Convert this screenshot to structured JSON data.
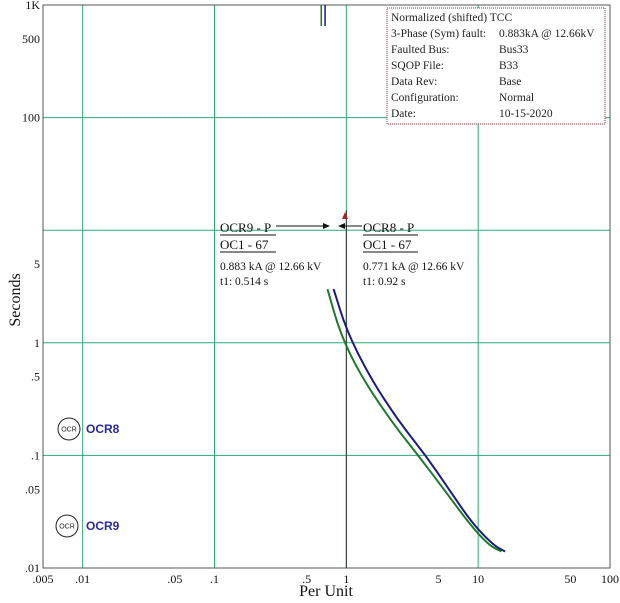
{
  "chart_data": {
    "type": "line",
    "title": "",
    "xlabel": "Per Unit",
    "ylabel": "Seconds",
    "x_scale": "log",
    "y_scale": "log",
    "xlim": [
      0.005,
      100
    ],
    "ylim": [
      0.01,
      1000
    ],
    "grid": true,
    "x_ticks": [
      {
        "value": 0.005,
        "label": ".005"
      },
      {
        "value": 0.01,
        "label": ".01"
      },
      {
        "value": 0.05,
        "label": ".05"
      },
      {
        "value": 0.1,
        "label": ".1"
      },
      {
        "value": 0.5,
        "label": ".5"
      },
      {
        "value": 1,
        "label": "1"
      },
      {
        "value": 5,
        "label": "5"
      },
      {
        "value": 10,
        "label": "10"
      },
      {
        "value": 50,
        "label": "50"
      },
      {
        "value": 100,
        "label": "100"
      }
    ],
    "y_ticks": [
      {
        "value": 0.01,
        "label": ".01"
      },
      {
        "value": 0.05,
        "label": ".05"
      },
      {
        "value": 0.1,
        "label": ".1"
      },
      {
        "value": 0.5,
        "label": ".5"
      },
      {
        "value": 1,
        "label": "1"
      },
      {
        "value": 5,
        "label": "5"
      },
      {
        "value": 100,
        "label": "100"
      },
      {
        "value": 500,
        "label": "500"
      },
      {
        "value": 1000,
        "label": "1K"
      }
    ],
    "x_grid": [
      0.01,
      0.1,
      1,
      10,
      100
    ],
    "y_grid": [
      0.01,
      0.1,
      1,
      10,
      100,
      1000
    ],
    "reference_line_x": 1,
    "series": [
      {
        "name": "OCR8",
        "color": "#1a1a8c",
        "points": [
          [
            0.8,
            3.0
          ],
          [
            1.0,
            1.3
          ],
          [
            1.5,
            0.5
          ],
          [
            2.5,
            0.2
          ],
          [
            4.0,
            0.1
          ],
          [
            6.0,
            0.05
          ],
          [
            9.0,
            0.025
          ],
          [
            13.0,
            0.016
          ],
          [
            16.0,
            0.014
          ]
        ],
        "top_segment": {
          "x": 0.69,
          "y_from": 1000,
          "y_to": 650
        }
      },
      {
        "name": "OCR9",
        "color": "#1e7a2a",
        "points": [
          [
            0.72,
            3.0
          ],
          [
            0.9,
            1.2
          ],
          [
            1.3,
            0.5
          ],
          [
            2.2,
            0.2
          ],
          [
            3.5,
            0.1
          ],
          [
            5.5,
            0.05
          ],
          [
            8.5,
            0.025
          ],
          [
            12.0,
            0.016
          ],
          [
            15.0,
            0.014
          ]
        ],
        "top_segment": {
          "x": 0.645,
          "y_from": 1000,
          "y_to": 650
        }
      }
    ],
    "annotations": {
      "left": {
        "line1": "OCR9 - P",
        "line2": "OC1 - 67",
        "line3": "0.883 kA @ 12.66 kV",
        "line4": "t1: 0.514 s"
      },
      "right": {
        "line1": "OCR8 - P",
        "line2": "OC1 - 67",
        "line3": "0.771 kA @ 12.66 kV",
        "line4": "t1: 0.92 s"
      }
    },
    "device_markers": [
      {
        "symbol": "OCR",
        "label": "OCR8",
        "y": 0.1,
        "label_color": "#2a2aa0"
      },
      {
        "symbol": "OCR",
        "label": "OCR9",
        "y": 0.02,
        "label_color": "#2a2aa0"
      }
    ],
    "info_box": [
      {
        "key": "Normalized (shifted) TCC",
        "value": ""
      },
      {
        "key": "3-Phase (Sym)   fault:",
        "value": "0.883kA @ 12.66kV"
      },
      {
        "key": "Faulted  Bus:",
        "value": "Bus33"
      },
      {
        "key": "SQOP  File:",
        "value": "B33"
      },
      {
        "key": "Data  Rev:",
        "value": "Base"
      },
      {
        "key": "Configuration:",
        "value": "Normal"
      },
      {
        "key": "Date:",
        "value": "10-15-2020"
      }
    ],
    "colors": {
      "grid": "#2aa87a",
      "frame": "#555555",
      "ref_line": "#333333",
      "arrow": "#b02020"
    }
  }
}
